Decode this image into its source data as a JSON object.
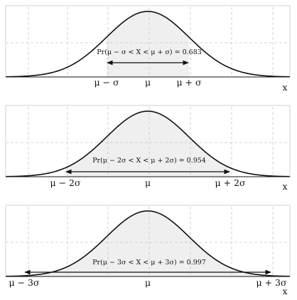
{
  "chart_data": [
    {
      "type": "area",
      "distribution": "normal",
      "x_unit": "sigma",
      "xlim": [
        -4.1,
        4.1
      ],
      "shaded_range": [
        -1,
        1
      ],
      "annotation": "Pr(μ − σ < X < μ + σ) = 0.683",
      "probability": 0.683,
      "tick_labels": [
        {
          "at": -1,
          "text": "μ − σ"
        },
        {
          "at": 0,
          "text": "μ"
        },
        {
          "at": 1,
          "text": "μ + σ"
        }
      ],
      "xlabel": "x",
      "grid": true
    },
    {
      "type": "area",
      "distribution": "normal",
      "x_unit": "sigma",
      "xlim": [
        -4.1,
        4.1
      ],
      "shaded_range": [
        -2,
        2
      ],
      "annotation": "Pr(μ − 2σ < X < μ + 2σ) = 0.954",
      "probability": 0.954,
      "tick_labels": [
        {
          "at": -2,
          "text": "μ − 2σ"
        },
        {
          "at": 0,
          "text": "μ"
        },
        {
          "at": 2,
          "text": "μ + 2σ"
        }
      ],
      "xlabel": "x",
      "grid": true
    },
    {
      "type": "area",
      "distribution": "normal",
      "x_unit": "sigma",
      "xlim": [
        -4.1,
        4.1
      ],
      "shaded_range": [
        -3,
        3
      ],
      "annotation": "Pr(μ − 3σ < X < μ + 3σ) = 0.997",
      "probability": 0.997,
      "tick_labels": [
        {
          "at": -3,
          "text": "μ − 3σ"
        },
        {
          "at": 0,
          "text": "μ"
        },
        {
          "at": 3,
          "text": "μ + 3σ"
        }
      ],
      "xlabel": "x",
      "grid": true
    }
  ],
  "colors": {
    "curve": "#111111",
    "fill": "#efefef",
    "grid": "#c8c8c8",
    "frame": "#d0d0d0",
    "text": "#111111"
  }
}
